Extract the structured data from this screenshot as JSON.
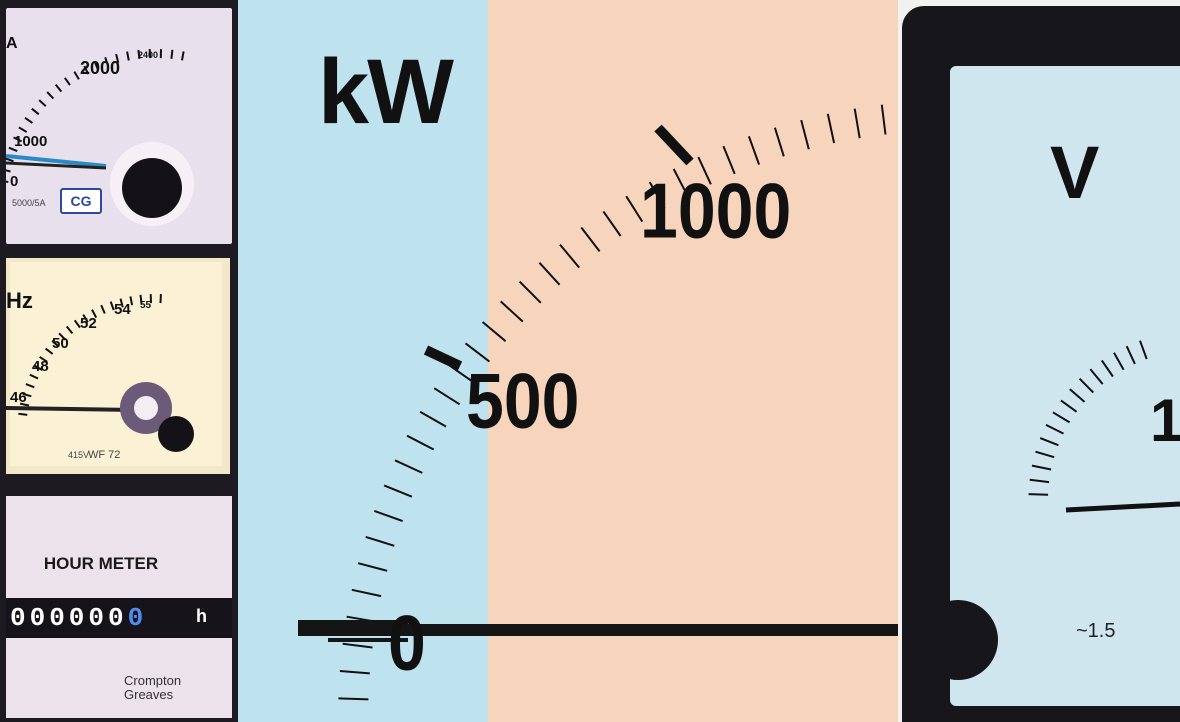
{
  "left_meters": {
    "ammeter": {
      "scale_labels": [
        "2000",
        "2400",
        "1000",
        "0"
      ],
      "unit_partial": "A",
      "footer": "5000/5A"
    },
    "frequency": {
      "unit_partial": "Hz",
      "scale_labels": [
        "46",
        "48",
        "50",
        "52",
        "54",
        "55"
      ],
      "footer_rating": "415V",
      "footer_model": "WF 72"
    },
    "hour_meter": {
      "title": "HOUR METER",
      "digits": "000000",
      "last_digit": "0",
      "unit": "h",
      "brand_line1": "Crompton",
      "brand_line2": "Greaves"
    },
    "logo": "CG"
  },
  "kw_meter": {
    "unit": "kW",
    "labels": [
      "0",
      "500",
      "1000"
    ],
    "needle_value": 0
  },
  "volt_meter": {
    "unit": "V",
    "visible_label": "1",
    "footer": "~1.5"
  },
  "colors": {
    "blue_band": "#bfe2ef",
    "peach_band": "#f7d5bd",
    "frame": "#17161a",
    "ink": "#111111"
  }
}
